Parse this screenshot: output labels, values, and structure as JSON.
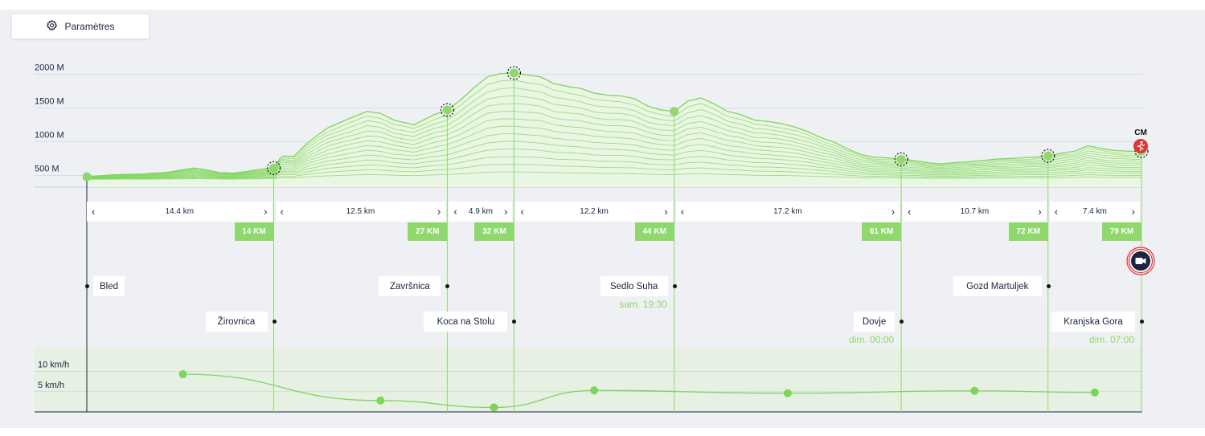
{
  "settings_button": {
    "label": "Paramètres",
    "icon": "gear-icon"
  },
  "chart_data": {
    "type": "area",
    "title": "",
    "xlabel": "",
    "ylabel": "",
    "elevation": {
      "unit": "M",
      "y_ticks": [
        "2000 M",
        "1500 M",
        "1000 M",
        "500 M"
      ],
      "y_tick_values": [
        2000,
        1500,
        1000,
        500
      ],
      "ylim": [
        0,
        2350
      ],
      "xlim": [
        0,
        79
      ],
      "profile": [
        [
          0,
          480
        ],
        [
          2,
          510
        ],
        [
          4,
          520
        ],
        [
          6,
          545
        ],
        [
          8,
          610
        ],
        [
          9,
          580
        ],
        [
          10,
          540
        ],
        [
          11,
          535
        ],
        [
          12,
          560
        ],
        [
          13,
          590
        ],
        [
          14,
          610
        ],
        [
          14.6,
          790
        ],
        [
          15.5,
          780
        ],
        [
          16.5,
          980
        ],
        [
          18,
          1200
        ],
        [
          19.5,
          1330
        ],
        [
          21,
          1450
        ],
        [
          22,
          1420
        ],
        [
          23,
          1320
        ],
        [
          24.5,
          1250
        ],
        [
          26,
          1400
        ],
        [
          27,
          1470
        ],
        [
          28,
          1620
        ],
        [
          29,
          1800
        ],
        [
          30,
          1960
        ],
        [
          31,
          2010
        ],
        [
          32,
          2020
        ],
        [
          33,
          1990
        ],
        [
          34,
          1960
        ],
        [
          35,
          1860
        ],
        [
          36,
          1820
        ],
        [
          37,
          1790
        ],
        [
          38,
          1720
        ],
        [
          39,
          1690
        ],
        [
          40,
          1680
        ],
        [
          41,
          1640
        ],
        [
          42,
          1530
        ],
        [
          43,
          1470
        ],
        [
          44,
          1450
        ],
        [
          45,
          1600
        ],
        [
          46,
          1650
        ],
        [
          47,
          1560
        ],
        [
          48,
          1450
        ],
        [
          49,
          1400
        ],
        [
          50,
          1320
        ],
        [
          51,
          1300
        ],
        [
          52,
          1270
        ],
        [
          53,
          1220
        ],
        [
          54,
          1150
        ],
        [
          55,
          1060
        ],
        [
          56,
          990
        ],
        [
          57,
          890
        ],
        [
          58,
          810
        ],
        [
          59,
          770
        ],
        [
          60,
          760
        ],
        [
          61,
          740
        ],
        [
          62,
          720
        ],
        [
          63,
          690
        ],
        [
          64,
          670
        ],
        [
          65,
          690
        ],
        [
          66,
          700
        ],
        [
          67,
          720
        ],
        [
          68,
          740
        ],
        [
          69,
          750
        ],
        [
          70,
          760
        ],
        [
          71,
          770
        ],
        [
          72,
          790
        ],
        [
          73,
          830
        ],
        [
          74,
          860
        ],
        [
          75,
          940
        ],
        [
          76,
          900
        ],
        [
          77,
          870
        ],
        [
          78,
          860
        ],
        [
          79,
          860
        ]
      ],
      "layers": 14,
      "ridge_points_km": [
        0,
        14,
        27,
        32,
        44,
        61,
        72,
        79
      ]
    },
    "segments": [
      {
        "from_km": 0,
        "to_km": 14,
        "label": "14.4 km"
      },
      {
        "from_km": 14,
        "to_km": 27,
        "label": "12.5 km"
      },
      {
        "from_km": 27,
        "to_km": 32,
        "label": "4.9 km"
      },
      {
        "from_km": 32,
        "to_km": 44,
        "label": "12.2 km"
      },
      {
        "from_km": 44,
        "to_km": 61,
        "label": "17.2 km"
      },
      {
        "from_km": 61,
        "to_km": 72,
        "label": "10.7 km"
      },
      {
        "from_km": 72,
        "to_km": 79,
        "label": "7.4 km"
      }
    ],
    "checkpoints": [
      {
        "km": 0,
        "km_label": "",
        "name": "Bled",
        "row": 1,
        "side": "right",
        "time": ""
      },
      {
        "km": 14,
        "km_label": "14 KM",
        "name": "Žirovnica",
        "row": 2,
        "side": "left",
        "time": ""
      },
      {
        "km": 27,
        "km_label": "27 KM",
        "name": "Završnica",
        "row": 1,
        "side": "left",
        "time": ""
      },
      {
        "km": 32,
        "km_label": "32 KM",
        "name": "Koca na Stolu",
        "row": 2,
        "side": "left",
        "time": ""
      },
      {
        "km": 44,
        "km_label": "44 KM",
        "name": "Sedlo Suha",
        "row": 1,
        "side": "left",
        "time": "sam. 19:30"
      },
      {
        "km": 61,
        "km_label": "61 KM",
        "name": "Dovje",
        "row": 2,
        "side": "left",
        "time": "dim. 00:00"
      },
      {
        "km": 72,
        "km_label": "72 KM",
        "name": "Gozd Martuljek",
        "row": 1,
        "side": "left",
        "time": ""
      },
      {
        "km": 79,
        "km_label": "79 KM",
        "name": "Kranjska Gora",
        "row": 2,
        "side": "left",
        "time": "dim. 07:00"
      }
    ],
    "speed": {
      "unit": "km/h",
      "y_ticks": [
        "10 km/h",
        "5 km/h"
      ],
      "y_tick_values": [
        10,
        5
      ],
      "ylim": [
        0,
        12.5
      ],
      "series": [
        {
          "km": 7.2,
          "value": 9.3
        },
        {
          "km": 22.0,
          "value": 2.8
        },
        {
          "km": 30.5,
          "value": 1.1
        },
        {
          "km": 38.0,
          "value": 5.3
        },
        {
          "km": 52.5,
          "value": 4.6
        },
        {
          "km": 66.5,
          "value": 5.2
        },
        {
          "km": 75.5,
          "value": 4.8
        }
      ]
    },
    "runner_marker": {
      "label": "CM",
      "km": 79,
      "icon": "runner-icon"
    },
    "colors": {
      "green": "#8fd86e",
      "line_green": "#7fd45c",
      "navy": "#1b2440",
      "red": "#e03535",
      "panel": "#eef0f4",
      "speed_band": "#e6f0e3"
    }
  },
  "camera_button": {
    "icon": "video-camera-icon"
  }
}
